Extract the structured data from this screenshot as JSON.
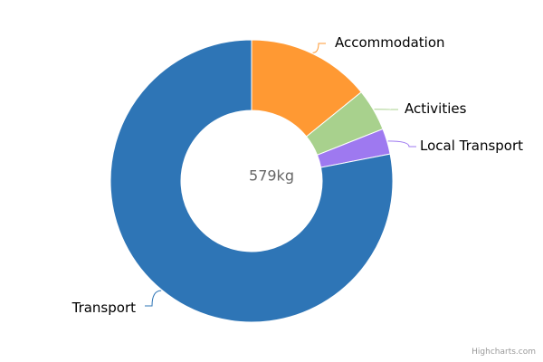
{
  "chart_data": {
    "type": "pie",
    "donut": true,
    "center_text": "579kg",
    "slices": [
      {
        "name": "Accommodation",
        "value": 82,
        "color": "#ff9933"
      },
      {
        "name": "Activities",
        "value": 28,
        "color": "#a8d18d"
      },
      {
        "name": "Local Transport",
        "value": 17,
        "color": "#9e79f0"
      },
      {
        "name": "Transport",
        "value": 452,
        "color": "#2e75b6"
      }
    ],
    "connector_colors": [
      "#ff9933",
      "#a8d18d",
      "#9e79f0",
      "#2e75b6"
    ]
  },
  "credit": "Highcharts.com"
}
